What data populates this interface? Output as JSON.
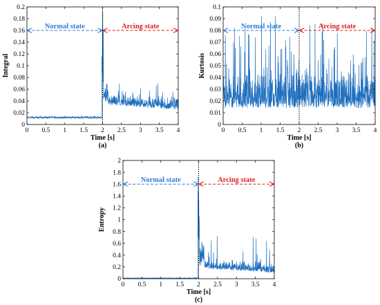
{
  "figure": {
    "annotation_normal": "Normal state",
    "annotation_arcing": "Arcing state",
    "colors": {
      "signal": "#1f6fbf",
      "normal": "#2e7dd1",
      "arcing": "#e02020",
      "divider": "#000000",
      "frame": "#000000"
    }
  },
  "chart_data": [
    {
      "type": "line",
      "panel_label": "(a)",
      "xlabel": "Time [s]",
      "ylabel": "Integral",
      "xlim": [
        0,
        4
      ],
      "ylim": [
        0,
        0.2
      ],
      "xticks": [
        "0",
        "0.5",
        "1",
        "1.5",
        "2",
        "2.5",
        "3",
        "3.5",
        "4"
      ],
      "yticks": [
        "0",
        "0.02",
        "0.04",
        "0.06",
        "0.08",
        "0.1",
        "0.12",
        "0.14",
        "0.16",
        "0.18",
        "0.2"
      ],
      "divider_x": 2,
      "annotation_y": 0.16,
      "series_profile": {
        "normal": {
          "x_range": [
            0,
            1.98
          ],
          "mean": 0.012,
          "spread": 0.002
        },
        "arcing": {
          "x_range": [
            2.0,
            4.0
          ],
          "mean": 0.025,
          "spread": 0.012,
          "peak": 0.07
        },
        "transition_spike": {
          "x": 1.98,
          "max": 0.2
        }
      }
    },
    {
      "type": "line",
      "panel_label": "(b)",
      "xlabel": "Time [s]",
      "ylabel": "Kurtosis",
      "xlim": [
        0,
        4
      ],
      "ylim": [
        0,
        0.1
      ],
      "xticks": [
        "0",
        "0.5",
        "1",
        "1.5",
        "2",
        "2.5",
        "3",
        "3.5",
        "4"
      ],
      "yticks": [
        "0",
        "0.01",
        "0.02",
        "0.03",
        "0.04",
        "0.05",
        "0.06",
        "0.07",
        "0.08",
        "0.09",
        "0.1"
      ],
      "divider_x": 2,
      "annotation_y": 0.08,
      "series_profile": {
        "whole": {
          "x_range": [
            0,
            4
          ],
          "mean": 0.02,
          "spread": 0.015,
          "peak": 0.092
        }
      }
    },
    {
      "type": "line",
      "panel_label": "(c)",
      "xlabel": "Time [s]",
      "ylabel": "Entropy",
      "xlim": [
        0,
        4
      ],
      "ylim": [
        0,
        2
      ],
      "xticks": [
        "0",
        "0.5",
        "1",
        "1.5",
        "2",
        "2.5",
        "3",
        "3.5",
        "4"
      ],
      "yticks": [
        "0",
        "0.2",
        "0.4",
        "0.6",
        "0.8",
        "1",
        "1.2",
        "1.4",
        "1.6",
        "1.8",
        "2"
      ],
      "divider_x": 2,
      "annotation_y": 1.6,
      "series_profile": {
        "normal": {
          "x_range": [
            0,
            1.98
          ],
          "mean": 0.01,
          "spread": 0.005
        },
        "arcing": {
          "x_range": [
            2.0,
            4.0
          ],
          "mean": 0.1,
          "spread": 0.1,
          "peak": 0.72
        },
        "transition_spike": {
          "x": 1.98,
          "max": 2.0
        }
      }
    }
  ]
}
